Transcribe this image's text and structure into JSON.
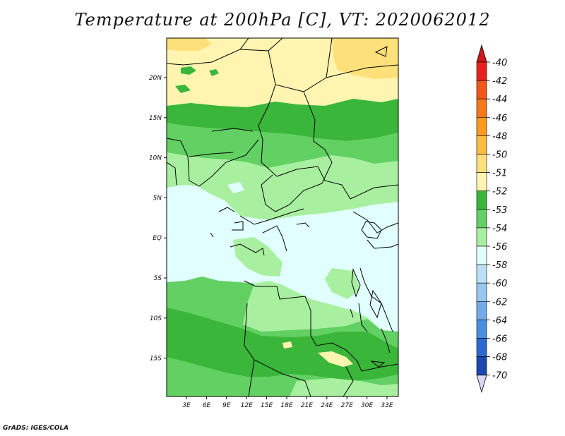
{
  "title": "Temperature at 200hPa [C], VT: 2020062012",
  "credit": "GrADS: IGES/COLA",
  "map": {
    "lat_labels": [
      "20N",
      "15N",
      "10N",
      "5N",
      "EQ",
      "5S",
      "10S",
      "15S"
    ],
    "lon_labels": [
      "3E",
      "6E",
      "9E",
      "12E",
      "15E",
      "18E",
      "21E",
      "24E",
      "27E",
      "30E",
      "33E"
    ]
  },
  "colorbar": {
    "labels": [
      "-40",
      "-42",
      "-44",
      "-46",
      "-48",
      "-50",
      "-51",
      "-52",
      "-53",
      "-54",
      "-56",
      "-58",
      "-60",
      "-62",
      "-64",
      "-66",
      "-68",
      "-70"
    ],
    "colors": [
      "#e8211c",
      "#f35718",
      "#f7781a",
      "#f99a1f",
      "#fbbc3f",
      "#fde07a",
      "#fff5b0",
      "#3ab63a",
      "#62d062",
      "#a8f0a0",
      "#e0fffe",
      "#bce0f8",
      "#98c8f0",
      "#72aaea",
      "#4b8ee0",
      "#2a6ad0",
      "#1848b0",
      "#0c1e78"
    ],
    "top_cap": "#d01818",
    "bottom_cap": "#dad7f2"
  }
}
